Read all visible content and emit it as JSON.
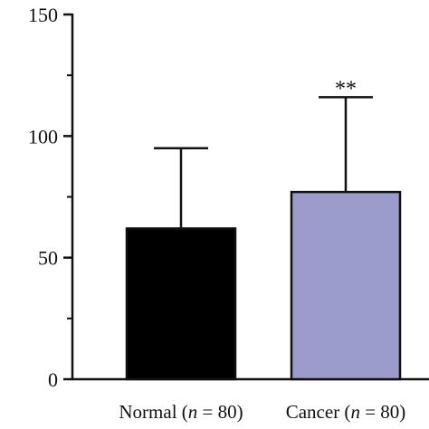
{
  "chart_data": {
    "type": "bar",
    "title": "",
    "xlabel": "",
    "ylabel": "",
    "ylim": [
      0,
      150
    ],
    "yticks": [
      0,
      50,
      100,
      150
    ],
    "grid": false,
    "categories": [
      {
        "name": "Normal",
        "n_label": "n",
        "n_value": "80"
      },
      {
        "name": "Cancer",
        "n_label": "n",
        "n_value": "80"
      }
    ],
    "values": [
      62,
      77
    ],
    "error_upper": [
      95,
      116
    ],
    "significance": [
      "",
      "**"
    ],
    "colors": {
      "bars": [
        "#000000",
        "#9b9bcc"
      ],
      "axis": "#111111"
    }
  }
}
